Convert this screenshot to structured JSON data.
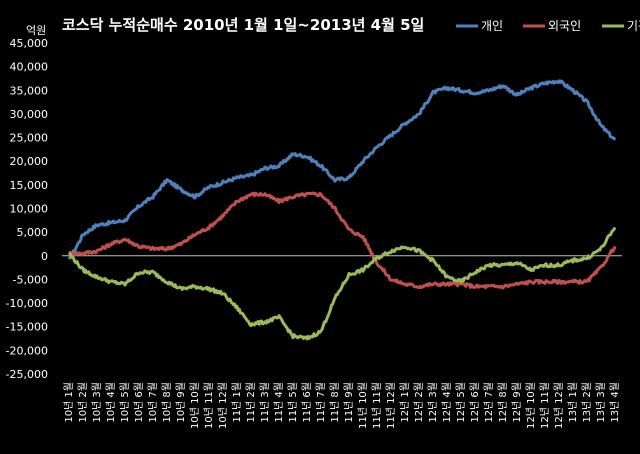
{
  "chart_data": {
    "type": "line",
    "title": "코스닥  누적순매수 2010년 1월 1일~2013년 4월 5일",
    "ylabel": "억원",
    "xlabel": "",
    "ylim": [
      -25000,
      45000
    ],
    "yticks": [
      -25000,
      -20000,
      -15000,
      -10000,
      -5000,
      0,
      5000,
      10000,
      15000,
      20000,
      25000,
      30000,
      35000,
      40000,
      45000
    ],
    "grid": false,
    "legend_position": "top-right",
    "background": "#000000",
    "text_color": "#ffffff",
    "zero_line_color": "#bfbfbf",
    "x": [
      "10년 1월",
      "10년 2월",
      "10년 3월",
      "10년 4월",
      "10년 5월",
      "10년 6월",
      "10년 7월",
      "10년 8월",
      "10년 9월",
      "10년 10월",
      "10년 11월",
      "10년 12월",
      "11년 1월",
      "11년 2월",
      "11년 3월",
      "11년 4월",
      "11년 5월",
      "11년 6월",
      "11년 7월",
      "11년 8월",
      "11년 9월",
      "11년 10월",
      "11년 11월",
      "11년 12월",
      "12년 1월",
      "12년 2월",
      "12년 3월",
      "12년 4월",
      "12년 5월",
      "12년 6월",
      "12년 7월",
      "12년 8월",
      "12년 9월",
      "12년 10월",
      "12년 11월",
      "12년 12월",
      "13년 1월",
      "13년 2월",
      "13년 3월",
      "13년 4월"
    ],
    "series": [
      {
        "name": "개인",
        "color": "#4f81bd",
        "values": [
          -1000,
          4500,
          6500,
          7000,
          7500,
          10500,
          12500,
          16000,
          14000,
          12500,
          14500,
          15500,
          16500,
          17000,
          18500,
          19000,
          21500,
          21000,
          19000,
          16000,
          16500,
          20000,
          23000,
          25500,
          28000,
          30000,
          34500,
          35500,
          35000,
          34500,
          35000,
          36000,
          34000,
          35500,
          36500,
          37000,
          35000,
          32500,
          27500,
          24500
        ]
      },
      {
        "name": "외국인",
        "color": "#c0504d",
        "values": [
          500,
          500,
          1000,
          2500,
          3500,
          2000,
          1500,
          1500,
          2500,
          4500,
          6000,
          8500,
          11500,
          13000,
          13000,
          11500,
          12500,
          13000,
          13000,
          10000,
          5500,
          4000,
          -1500,
          -5000,
          -6000,
          -6500,
          -6000,
          -6000,
          -6000,
          -6500,
          -6500,
          -6500,
          -6000,
          -5500,
          -5500,
          -5500,
          -5500,
          -5500,
          -2500,
          2000
        ]
      },
      {
        "name": "기관",
        "color": "#9bbb59",
        "values": [
          500,
          -3000,
          -4500,
          -5500,
          -6000,
          -3500,
          -3500,
          -5500,
          -7000,
          -6500,
          -7000,
          -8000,
          -11000,
          -14500,
          -14000,
          -13000,
          -17000,
          -17500,
          -16000,
          -9000,
          -4000,
          -3000,
          -500,
          1000,
          2000,
          1000,
          -1000,
          -4500,
          -5500,
          -3500,
          -2000,
          -2000,
          -1500,
          -3000,
          -2000,
          -2000,
          -1000,
          -500,
          1500,
          6000
        ]
      }
    ]
  }
}
